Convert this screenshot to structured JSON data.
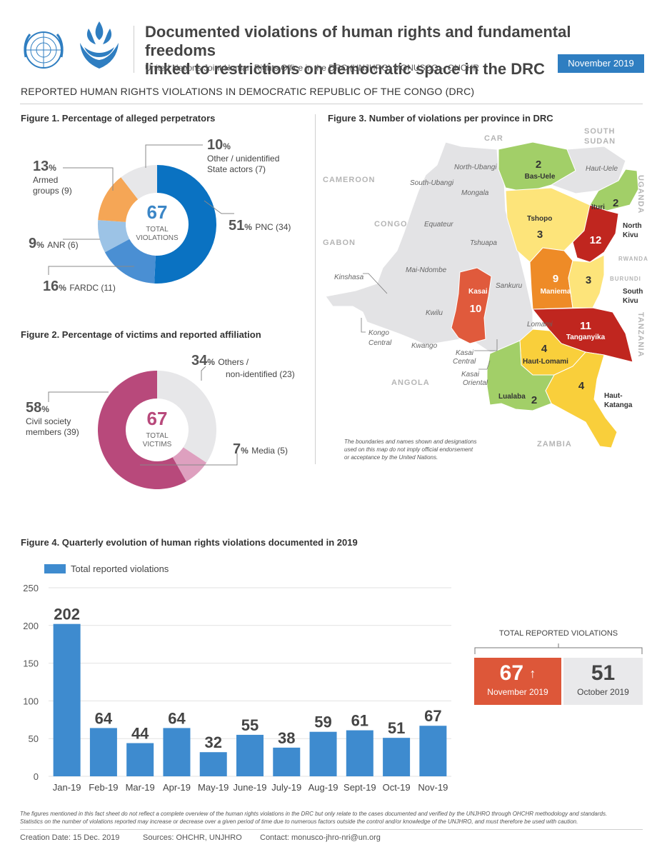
{
  "header": {
    "title_line1": "Documented violations of human rights and fundamental freedoms",
    "title_line2": "linked to restrictions on democratic space in the DRC",
    "subtitle": "United Nations Joint Human Rights Office in the DRC (UNJHRO) MONUSCO – OHCHR",
    "date": "November 2019"
  },
  "section_title": "REPORTED HUMAN RIGHTS VIOLATIONS IN DEMOCRATIC REPUBLIC OF THE CONGO (DRC)",
  "figure1": {
    "title": "Figure 1. Percentage of alleged perpetrators",
    "center_value": "67",
    "center_label1": "TOTAL",
    "center_label2": "VIOLATIONS",
    "labels": {
      "other": {
        "pct": "10",
        "line1": "Other / unidentified",
        "line2": "State actors (7)"
      },
      "armed": {
        "pct": "13",
        "line1": "Armed",
        "line2": "groups (9)"
      },
      "pnc": {
        "pct": "51",
        "text": "PNC (34)"
      },
      "anr": {
        "pct": "9",
        "text": "ANR (6)"
      },
      "fardc": {
        "pct": "16",
        "text": "FARDC (11)"
      }
    }
  },
  "figure2": {
    "title": "Figure 2. Percentage of victims and reported affiliation",
    "center_value": "67",
    "center_label1": "TOTAL",
    "center_label2": "VICTIMS",
    "labels": {
      "others": {
        "pct": "34",
        "line1": "Others /",
        "line2": "non-identified (23)"
      },
      "civil": {
        "pct": "58",
        "line1": "Civil society",
        "line2": "members (39)"
      },
      "media": {
        "pct": "7",
        "text": "Media (5)"
      }
    }
  },
  "figure3": {
    "title": "Figure 3. Number of violations per province in DRC",
    "countries": [
      "CAR",
      "SOUTH",
      "SUDAN",
      "CAMEROON",
      "CONGO",
      "GABON",
      "ANGOLA",
      "ZAMBIA",
      "UGANDA",
      "RWANDA",
      "BURUNDI",
      "TANZANIA"
    ],
    "grey_provinces": [
      "North-Ubangi",
      "South-Ubangi",
      "Mongala",
      "Haut-Uele",
      "Equateur",
      "Tshuapa",
      "Mai-Ndombe",
      "Sankuru",
      "Kinshasa",
      "Kwilu",
      "Kongo",
      "Central",
      "Kwango",
      "Lomami",
      "Kasai",
      "Central",
      "Kasai",
      "Oriental"
    ],
    "provinces": [
      {
        "name": "Bas-Uele",
        "count": "2"
      },
      {
        "name": "Ituri",
        "count": "2"
      },
      {
        "name": "Tshopo",
        "count": "3"
      },
      {
        "name": "North",
        "name2": "Kivu",
        "count": "12"
      },
      {
        "name": "Maniema",
        "count": "9"
      },
      {
        "name": "South",
        "name2": "Kivu",
        "count": "3"
      },
      {
        "name": "Kasai",
        "count": "10"
      },
      {
        "name": "Tanganyika",
        "count": "11"
      },
      {
        "name": "Haut-Lomami",
        "count": "4"
      },
      {
        "name": "Haut-",
        "name2": "Katanga",
        "count": "4"
      },
      {
        "name": "Lualaba",
        "count": "2"
      }
    ],
    "disclaimer1": "The boundaries and names shown and designations",
    "disclaimer2": "used on this map do not imply official endorsement",
    "disclaimer3": "or acceptance by the United Nations.",
    "colors": {
      "grey": "#e3e3e5",
      "green": "#a2cf68",
      "yellow": "#fde47a",
      "gold": "#f9cf3b",
      "orange": "#ee8b27",
      "redorange": "#e05a3c",
      "red": "#c0261f"
    }
  },
  "figure4": {
    "title": "Figure 4. Quarterly evolution of human rights violations documented in 2019",
    "legend": "Total reported violations"
  },
  "totals": {
    "title": "TOTAL REPORTED VIOLATIONS",
    "current": {
      "value": "67",
      "arrow": "↑",
      "label": "November 2019"
    },
    "previous": {
      "value": "51",
      "label": "October 2019"
    }
  },
  "footnote1": "The figures mentioned in this fact sheet do not reflect a complete overview of the human rights violations in the DRC but only relate to the cases documented and verified by the UNJHRO through OHCHR methodology and standards.",
  "footnote2": "Statistics on the number of violations reported may increase or decrease over a given period of time due to numerous factors outside the control and/or knowledge of the UNJHRO, and must therefore be used with caution.",
  "footer": {
    "creation": "Creation Date: 15 Dec. 2019",
    "sources": "Sources: OHCHR, UNJHRO",
    "contact": "Contact: monusco-jhro-nri@un.org"
  },
  "chart_data": [
    {
      "type": "pie",
      "title": "Figure 1. Percentage of alleged perpetrators",
      "categories": [
        "PNC",
        "FARDC",
        "ANR",
        "Armed groups",
        "Other / unidentified State actors"
      ],
      "values": [
        34,
        11,
        6,
        9,
        7
      ],
      "percentages": [
        51,
        16,
        9,
        13,
        10
      ],
      "colors": [
        "#0a72c2",
        "#4a8fd3",
        "#9cc3e6",
        "#f5a656",
        "#e7e7e9"
      ],
      "total": 67
    },
    {
      "type": "pie",
      "title": "Figure 2. Percentage of victims and reported affiliation",
      "categories": [
        "Others / non-identified",
        "Civil society members",
        "Media"
      ],
      "values": [
        23,
        39,
        5
      ],
      "percentages": [
        34,
        58,
        7
      ],
      "colors": [
        "#e7e7e9",
        "#b8497b",
        "#dea0bf"
      ],
      "total": 67
    },
    {
      "type": "bar",
      "title": "Figure 4. Quarterly evolution of human rights violations documented in 2019",
      "categories": [
        "Jan-19",
        "Feb-19",
        "Mar-19",
        "Apr-19",
        "May-19",
        "June-19",
        "July-19",
        "Aug-19",
        "Sept-19",
        "Oct-19",
        "Nov-19"
      ],
      "series": [
        {
          "name": "Total reported violations",
          "values": [
            202,
            64,
            44,
            64,
            32,
            55,
            38,
            59,
            61,
            51,
            67
          ]
        }
      ],
      "yticks": [
        0,
        50,
        100,
        150,
        200,
        250
      ],
      "ylim": [
        0,
        250
      ],
      "bar_color": "#3e8bcf"
    }
  ]
}
